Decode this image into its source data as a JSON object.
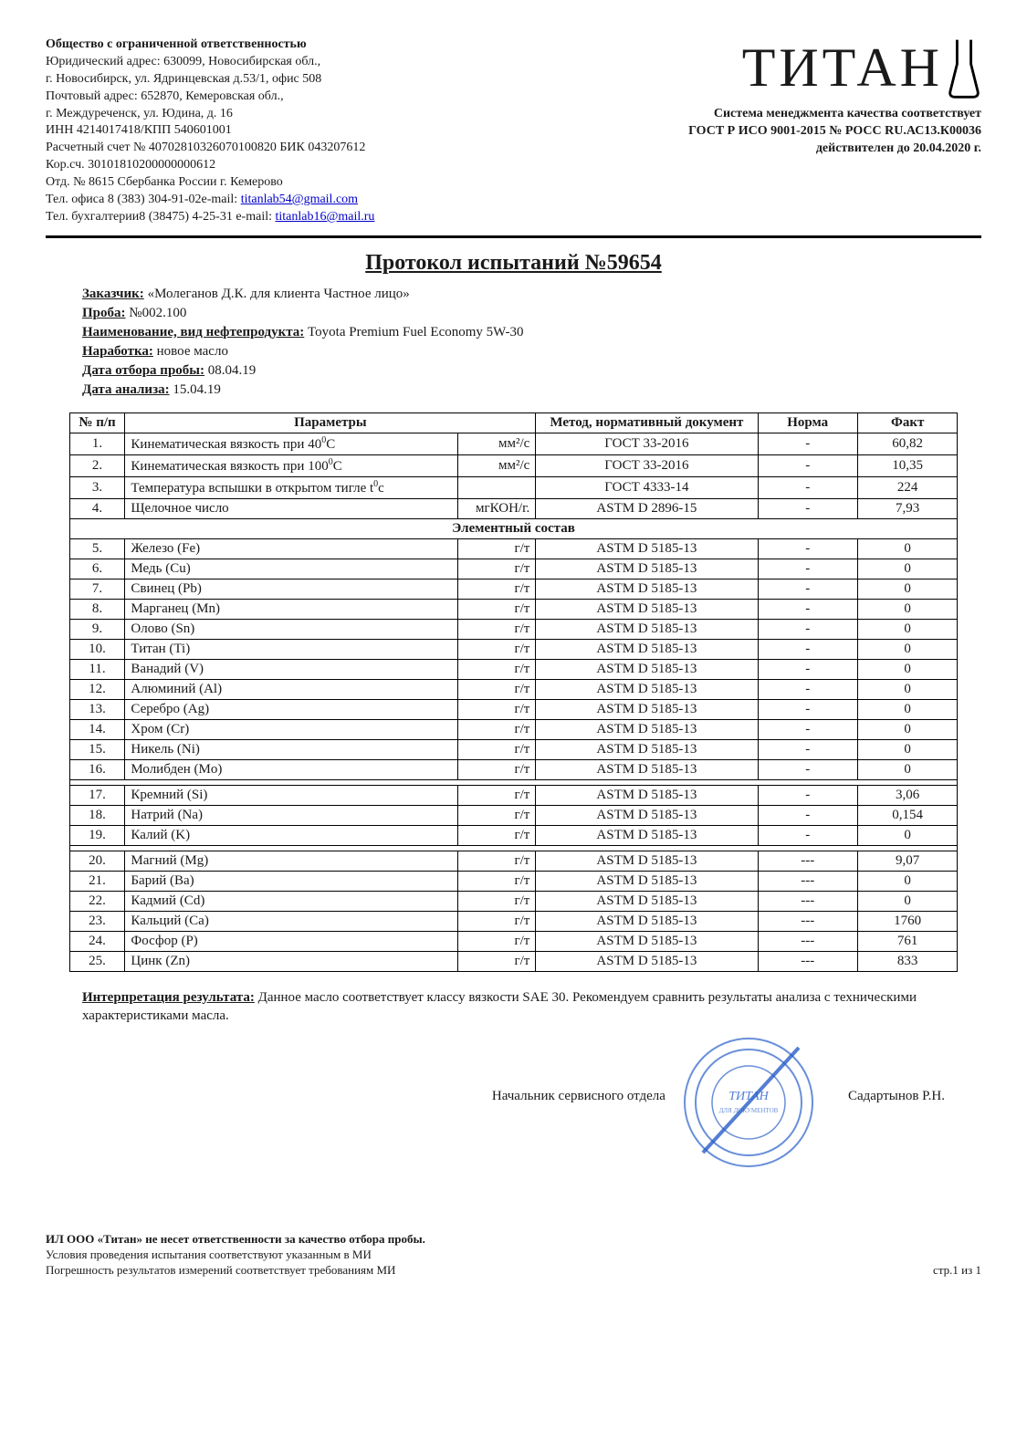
{
  "header": {
    "org_name": "Общество с ограниченной ответственностью",
    "legal_addr1": "Юридический адрес: 630099, Новосибирская обл.,",
    "legal_addr2": "г. Новосибирск, ул. Ядринцевская д.53/1, офис 508",
    "postal_addr1": "Почтовый адрес: 652870, Кемеровская обл.,",
    "postal_addr2": "г. Междуреченск, ул. Юдина, д. 16",
    "inn": "ИНН 4214017418/КПП 540601001",
    "account": "Расчетный счет № 40702810326070100820 БИК  043207612",
    "corr": "Кор.сч. 30101810200000000612",
    "dept": "Отд. № 8615 Сбербанка России г. Кемерово",
    "tel1_pre": "Тел. офиса 8 (383) 304-91-02e-mail: ",
    "tel1_email": "titanlab54@gmail.com",
    "tel2_pre": "Тел. бухгалтерии8 (38475) 4-25-31 e-mail: ",
    "tel2_email": "titanlab16@mail.ru"
  },
  "logo": {
    "text": "ТИТАН"
  },
  "quality": {
    "line1": "Система менеджмента качества соответствует",
    "line2": "ГОСТ Р ИСО 9001-2015 № РОСС RU.АС13.К00036",
    "line3": "действителен до 20.04.2020 г."
  },
  "title": "Протокол испытаний №59654",
  "meta": {
    "customer_label": "Заказчик:",
    "customer": " «Молеганов Д.К. для клиента Частное лицо»",
    "sample_label": "Проба:",
    "sample": " №002.100",
    "product_label": "Наименование, вид нефтепродукта:",
    "product": " Toyota Premium Fuel Economy 5W-30",
    "usage_label": "Наработка:",
    "usage": " новое масло",
    "sample_date_label": "Дата отбора пробы:",
    "sample_date": " 08.04.19",
    "analysis_date_label": "Дата анализа:",
    "analysis_date": " 15.04.19"
  },
  "table": {
    "headers": {
      "num": "№ п/п",
      "params": "Параметры",
      "method": "Метод, нормативный документ",
      "norm": "Норма",
      "fact": "Факт"
    },
    "section1": [
      {
        "n": "1.",
        "param": "Кинематическая вязкость при 40",
        "sup": "0",
        "post": "С",
        "unit": "мм²/с",
        "method": "ГОСТ 33-2016",
        "norm": "-",
        "fact": "60,82"
      },
      {
        "n": "2.",
        "param": "Кинематическая вязкость при 100",
        "sup": "0",
        "post": "С",
        "unit": "мм²/с",
        "method": "ГОСТ 33-2016",
        "norm": "-",
        "fact": "10,35"
      },
      {
        "n": "3.",
        "param": "Температура вспышки в открытом тигле t",
        "sup": "0",
        "post": "с",
        "unit": "",
        "method": "ГОСТ 4333-14",
        "norm": "-",
        "fact": "224"
      },
      {
        "n": "4.",
        "param": "Щелочное число",
        "sup": "",
        "post": "",
        "unit": "мгКОН/г.",
        "method": "ASTM D 2896-15",
        "norm": "-",
        "fact": "7,93"
      }
    ],
    "section2_title": "Элементный состав",
    "section2a": [
      {
        "n": "5.",
        "param": "Железо (Fe)",
        "unit": "г/т",
        "method": "ASTM D 5185-13",
        "norm": "-",
        "fact": "0"
      },
      {
        "n": "6.",
        "param": "Медь (Cu)",
        "unit": "г/т",
        "method": "ASTM D 5185-13",
        "norm": "-",
        "fact": "0"
      },
      {
        "n": "7.",
        "param": "Свинец (Pb)",
        "unit": "г/т",
        "method": "ASTM D 5185-13",
        "norm": "-",
        "fact": "0"
      },
      {
        "n": "8.",
        "param": "Марганец (Mn)",
        "unit": "г/т",
        "method": "ASTM D 5185-13",
        "norm": "-",
        "fact": "0"
      },
      {
        "n": "9.",
        "param": "Олово (Sn)",
        "unit": "г/т",
        "method": "ASTM D 5185-13",
        "norm": "-",
        "fact": "0"
      },
      {
        "n": "10.",
        "param": "Титан (Ti)",
        "unit": "г/т",
        "method": "ASTM D 5185-13",
        "norm": "-",
        "fact": "0"
      },
      {
        "n": "11.",
        "param": "Ванадий (V)",
        "unit": "г/т",
        "method": "ASTM D 5185-13",
        "norm": "-",
        "fact": "0"
      },
      {
        "n": "12.",
        "param": "Алюминий (Al)",
        "unit": "г/т",
        "method": "ASTM D 5185-13",
        "norm": "-",
        "fact": "0"
      },
      {
        "n": "13.",
        "param": "Серебро (Ag)",
        "unit": "г/т",
        "method": "ASTM D 5185-13",
        "norm": "-",
        "fact": "0"
      },
      {
        "n": "14.",
        "param": "Хром (Cr)",
        "unit": "г/т",
        "method": "ASTM D 5185-13",
        "norm": "-",
        "fact": "0"
      },
      {
        "n": "15.",
        "param": "Никель (Ni)",
        "unit": "г/т",
        "method": "ASTM D 5185-13",
        "norm": "-",
        "fact": "0"
      },
      {
        "n": "16.",
        "param": "Молибден (Mo)",
        "unit": "г/т",
        "method": "ASTM D 5185-13",
        "norm": "-",
        "fact": "0"
      }
    ],
    "section2b": [
      {
        "n": "17.",
        "param": "Кремний (Si)",
        "unit": "г/т",
        "method": "ASTM D 5185-13",
        "norm": "-",
        "fact": "3,06"
      },
      {
        "n": "18.",
        "param": "Натрий (Na)",
        "unit": "г/т",
        "method": "ASTM D 5185-13",
        "norm": "-",
        "fact": "0,154"
      },
      {
        "n": "19.",
        "param": "Калий (K)",
        "unit": "г/т",
        "method": "ASTM D 5185-13",
        "norm": "-",
        "fact": "0"
      }
    ],
    "section2c": [
      {
        "n": "20.",
        "param": "Магний (Mg)",
        "unit": "г/т",
        "method": "ASTM D 5185-13",
        "norm": "---",
        "fact": "9,07"
      },
      {
        "n": "21.",
        "param": "Барий (Ba)",
        "unit": "г/т",
        "method": "ASTM D 5185-13",
        "norm": "---",
        "fact": "0"
      },
      {
        "n": "22.",
        "param": "Кадмий (Cd)",
        "unit": "г/т",
        "method": "ASTM D 5185-13",
        "norm": "---",
        "fact": "0"
      },
      {
        "n": "23.",
        "param": "Кальций (Ca)",
        "unit": "г/т",
        "method": "ASTM D 5185-13",
        "norm": "---",
        "fact": "1760"
      },
      {
        "n": "24.",
        "param": "Фосфор (P)",
        "unit": "г/т",
        "method": "ASTM D 5185-13",
        "norm": "---",
        "fact": "761"
      },
      {
        "n": "25.",
        "param": "Цинк (Zn)",
        "unit": "г/т",
        "method": "ASTM D 5185-13",
        "norm": "---",
        "fact": "833"
      }
    ]
  },
  "interpretation": {
    "label": "Интерпретация результата:",
    "text": " Данное масло соответствует классу вязкости SAE 30. Рекомендуем сравнить результаты анализа с техническими характеристиками масла."
  },
  "signature": {
    "position": "Начальник сервисного отдела",
    "name": "Садартынов Р.Н."
  },
  "footer": {
    "line1": "ИЛ ООО «Титан» не несет ответственности за качество отбора пробы.",
    "line2": "Условия проведения испытания соответствуют указанным в МИ",
    "line3": "Погрешность результатов измерений соответствует требованиям МИ",
    "page": "стр.1 из 1"
  },
  "colors": {
    "stamp": "#2a5fc9",
    "link": "#0000cc",
    "text": "#1a1a1a",
    "border": "#000000",
    "background": "#ffffff"
  }
}
